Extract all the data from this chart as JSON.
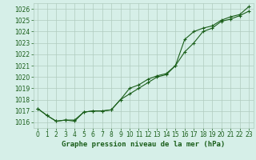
{
  "xlabel": "Graphe pression niveau de la mer (hPa)",
  "ylim": [
    1015.5,
    1026.5
  ],
  "xlim": [
    -0.5,
    23.5
  ],
  "yticks": [
    1016,
    1017,
    1018,
    1019,
    1020,
    1021,
    1022,
    1023,
    1024,
    1025,
    1026
  ],
  "xticks": [
    0,
    1,
    2,
    3,
    4,
    5,
    6,
    7,
    8,
    9,
    10,
    11,
    12,
    13,
    14,
    15,
    16,
    17,
    18,
    19,
    20,
    21,
    22,
    23
  ],
  "bg_color": "#d6efe8",
  "grid_color": "#b0ccbf",
  "line_color": "#1a5e1a",
  "line1_y": [
    1017.2,
    1016.6,
    1016.1,
    1016.2,
    1016.1,
    1016.9,
    1017.0,
    1017.0,
    1017.1,
    1018.0,
    1018.5,
    1019.0,
    1019.5,
    1020.0,
    1020.2,
    1021.0,
    1022.2,
    1023.0,
    1024.0,
    1024.3,
    1024.9,
    1025.1,
    1025.4,
    1025.8
  ],
  "line2_y": [
    1017.2,
    1016.6,
    1016.1,
    1016.2,
    1016.2,
    1016.9,
    1017.0,
    1017.0,
    1017.1,
    1018.0,
    1019.0,
    1019.3,
    1019.8,
    1020.1,
    1020.3,
    1021.0,
    1023.3,
    1024.0,
    1024.3,
    1024.5,
    1025.0,
    1025.3,
    1025.5,
    1026.2
  ],
  "tick_fontsize": 5.5,
  "label_fontsize": 6.5
}
